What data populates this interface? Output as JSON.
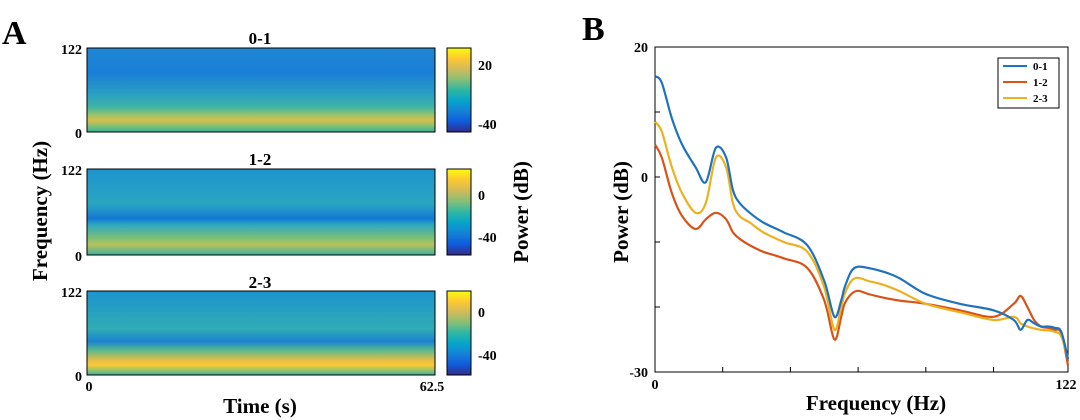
{
  "panel_labels": {
    "a": "A",
    "b": "B"
  },
  "colormap": [
    "#352a87",
    "#0f5cdd",
    "#1481d6",
    "#06a4ca",
    "#2eb7a4",
    "#87bf77",
    "#d1bb59",
    "#fec832",
    "#f9fb0e"
  ],
  "chart_data": [
    {
      "type": "heatmap",
      "panel": "A",
      "xlabel": "Time (s)",
      "ylabel": "Frequency (Hz)",
      "colorbar_label": "Power (dB)",
      "x_range": [
        0,
        62.5
      ],
      "x_ticks": [
        "0",
        "62.5"
      ],
      "y_range": [
        0,
        122
      ],
      "y_ticks": [
        "0",
        "122"
      ],
      "subplots": [
        {
          "title": "0-1",
          "colorbar_ticks": [
            "20",
            "-40"
          ],
          "clim": [
            -50,
            28
          ]
        },
        {
          "title": "1-2",
          "colorbar_ticks": [
            "0",
            "-40"
          ],
          "clim": [
            -55,
            13
          ]
        },
        {
          "title": "2-3",
          "colorbar_ticks": [
            "0",
            "-40"
          ],
          "clim": [
            -55,
            13
          ]
        }
      ]
    },
    {
      "type": "line",
      "panel": "B",
      "xlabel": "Frequency (Hz)",
      "ylabel": "Power (dB)",
      "xlim": [
        0,
        122
      ],
      "ylim": [
        -30,
        20
      ],
      "x_ticks": [
        "0",
        "122"
      ],
      "y_ticks": [
        "20",
        "0",
        "-30"
      ],
      "legend_position": "top-right",
      "x": [
        0,
        2,
        5,
        8,
        12,
        15,
        18,
        21,
        23,
        25,
        28,
        32,
        38,
        45,
        50,
        53,
        55,
        56,
        58,
        60,
        63,
        67,
        72,
        80,
        90,
        100,
        106,
        108,
        110,
        112,
        114,
        116,
        118,
        120,
        122
      ],
      "series": [
        {
          "name": "0-1",
          "color": "#1f72bc",
          "values": [
            15.5,
            14.5,
            9,
            5,
            1.5,
            -0.8,
            4.5,
            3,
            -2,
            -4,
            -5.5,
            -7,
            -8.5,
            -10.5,
            -16,
            -21.5,
            -19,
            -17,
            -14.5,
            -13.8,
            -14,
            -14.5,
            -15.5,
            -18,
            -19.5,
            -20.5,
            -22,
            -23.5,
            -22,
            -22.5,
            -23,
            -23,
            -23.2,
            -23.8,
            -28
          ]
        },
        {
          "name": "1-2",
          "color": "#d95319",
          "values": [
            5,
            3,
            -2.5,
            -6,
            -8,
            -6.5,
            -5.5,
            -6.5,
            -8.5,
            -9.5,
            -10.5,
            -11.5,
            -12.5,
            -14,
            -19,
            -25,
            -21.5,
            -19.5,
            -18,
            -17.5,
            -18,
            -18.5,
            -19,
            -19.5,
            -20.5,
            -21.5,
            -19.5,
            -18.3,
            -20,
            -22,
            -23,
            -23.2,
            -23.5,
            -24,
            -29
          ]
        },
        {
          "name": "2-3",
          "color": "#edb120",
          "values": [
            8.5,
            7,
            1.5,
            -2.5,
            -5.5,
            -4,
            3,
            1.5,
            -4,
            -6,
            -7,
            -8.5,
            -10,
            -11.5,
            -17,
            -23.5,
            -20,
            -18,
            -16,
            -15.5,
            -16,
            -16.5,
            -17.5,
            -19.5,
            -20.8,
            -22,
            -21.5,
            -22.5,
            -23,
            -23.3,
            -23.5,
            -23.6,
            -23.8,
            -24.5,
            -28
          ]
        }
      ]
    }
  ]
}
